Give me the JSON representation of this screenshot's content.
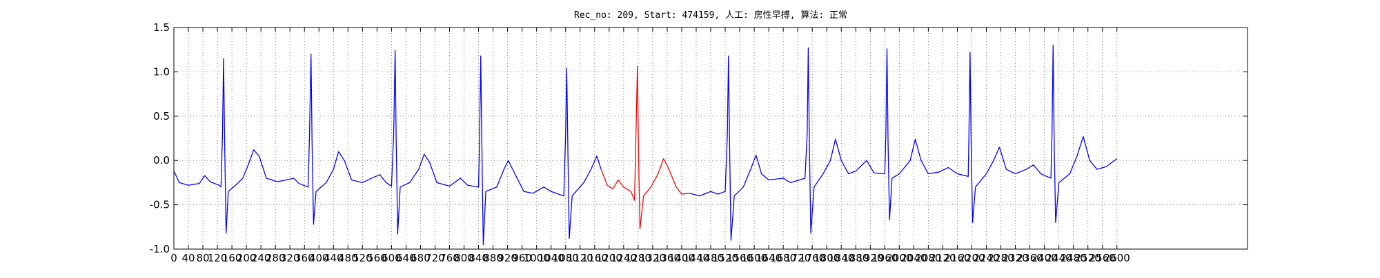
{
  "chart_data": {
    "type": "line",
    "title": "Rec_no: 209, Start: 474159, 人工: 房性早搏, 算法: 正常",
    "xlim": [
      0,
      2960
    ],
    "xticks": [
      0,
      40,
      80,
      120,
      160,
      200,
      240,
      280,
      320,
      360,
      400,
      440,
      480,
      520,
      560,
      600,
      640,
      680,
      720,
      760,
      800,
      840,
      880,
      920,
      960,
      1000,
      1040,
      1080,
      1120,
      1160,
      1200,
      1240,
      1280,
      1320,
      1360,
      1400,
      1440,
      1480,
      1520,
      1560,
      1600,
      1640,
      1680,
      1720,
      1760,
      1800,
      1840,
      1880,
      1920,
      1960,
      2000,
      2040,
      2080,
      2120,
      2160,
      2200,
      2240,
      2280,
      2320,
      2360,
      2400,
      2440,
      2480,
      2520,
      2560,
      2600
    ],
    "ylim": [
      -1.0,
      1.5
    ],
    "yticks": [
      {
        "value": -1.0,
        "label": "-1.0"
      },
      -0.5,
      {
        "value": 0.0,
        "label": "0.0"
      },
      0.5,
      {
        "value": 1.0,
        "label": "1.0"
      },
      1.5
    ],
    "grid": true,
    "series": [
      {
        "name": "正常",
        "color": "#0000ff",
        "x": [
          0,
          15,
          40,
          70,
          85,
          100,
          125,
          130,
          134,
          137,
          140,
          144,
          150,
          170,
          190,
          205,
          220,
          235,
          255,
          285,
          310,
          330,
          345,
          370,
          374,
          378,
          381,
          385,
          392,
          420,
          440,
          454,
          470,
          490,
          520,
          545,
          568,
          585,
          600,
          606,
          610,
          613,
          617,
          624,
          650,
          675,
          690,
          705,
          725,
          760,
          790,
          810,
          840,
          843,
          846,
          849,
          853,
          860,
          890,
          910,
          922,
          940,
          965,
          990,
          1020,
          1040,
          1075,
          1080,
          1083,
          1086,
          1090,
          1098,
          1130,
          1150,
          1166,
          1178,
          1300,
          1422,
          1450,
          1480,
          1500,
          1520,
          1526,
          1529,
          1532,
          1536,
          1545,
          1570,
          1590,
          1605,
          1620,
          1640,
          1680,
          1700,
          1740,
          1746,
          1749,
          1752,
          1756,
          1765,
          1790,
          1810,
          1824,
          1840,
          1860,
          1880,
          1910,
          1930,
          1960,
          1963,
          1966,
          1969,
          1973,
          1980,
          2000,
          2030,
          2044,
          2060,
          2080,
          2110,
          2135,
          2160,
          2190,
          2192,
          2195,
          2198,
          2202,
          2210,
          2240,
          2260,
          2276,
          2295,
          2320,
          2350,
          2370,
          2390,
          2418,
          2421,
          2424,
          2427,
          2431,
          2440,
          2470,
          2490,
          2507,
          2525,
          2545,
          2570,
          2600
        ],
        "values": [
          -0.12,
          -0.25,
          -0.28,
          -0.26,
          -0.17,
          -0.24,
          -0.28,
          -0.3,
          0.3,
          1.15,
          0.2,
          -0.82,
          -0.35,
          -0.28,
          -0.2,
          -0.05,
          0.12,
          0.05,
          -0.2,
          -0.24,
          -0.22,
          -0.2,
          -0.26,
          -0.3,
          0.3,
          1.2,
          0.2,
          -0.72,
          -0.35,
          -0.25,
          -0.1,
          0.1,
          0.0,
          -0.22,
          -0.25,
          -0.2,
          -0.16,
          -0.25,
          -0.29,
          0.3,
          1.24,
          0.2,
          -0.83,
          -0.3,
          -0.25,
          -0.1,
          0.07,
          -0.02,
          -0.25,
          -0.29,
          -0.2,
          -0.28,
          -0.3,
          0.3,
          1.18,
          0.2,
          -0.95,
          -0.35,
          -0.3,
          -0.1,
          0.0,
          -0.15,
          -0.35,
          -0.37,
          -0.3,
          -0.35,
          -0.4,
          0.3,
          1.04,
          0.2,
          -0.88,
          -0.4,
          -0.25,
          -0.1,
          0.05,
          -0.1,
          null,
          -0.37,
          -0.4,
          -0.35,
          -0.38,
          -0.35,
          0.3,
          1.18,
          0.2,
          -0.9,
          -0.4,
          -0.3,
          -0.1,
          0.06,
          -0.15,
          -0.22,
          -0.2,
          -0.25,
          -0.2,
          0.3,
          1.27,
          0.2,
          -0.82,
          -0.3,
          -0.15,
          0.0,
          0.24,
          0.0,
          -0.15,
          -0.12,
          0.0,
          -0.14,
          -0.15,
          0.3,
          1.26,
          0.2,
          -0.67,
          -0.2,
          -0.15,
          0.0,
          0.24,
          0.0,
          -0.15,
          -0.13,
          -0.08,
          -0.15,
          -0.18,
          0.3,
          1.22,
          0.2,
          -0.7,
          -0.3,
          -0.15,
          0.0,
          0.15,
          -0.1,
          -0.15,
          -0.1,
          -0.05,
          -0.15,
          -0.2,
          0.3,
          1.3,
          0.2,
          -0.7,
          -0.25,
          -0.15,
          0.05,
          0.27,
          0.0,
          -0.1,
          -0.07,
          0.02
        ]
      },
      {
        "name": "房性早搏",
        "color": "#ff0000",
        "x": [
          1178,
          1195,
          1210,
          1225,
          1240,
          1260,
          1270,
          1274,
          1278,
          1281,
          1285,
          1295,
          1315,
          1335,
          1350,
          1365,
          1385,
          1400,
          1422
        ],
        "values": [
          -0.1,
          -0.28,
          -0.32,
          -0.22,
          -0.3,
          -0.35,
          -0.45,
          0.3,
          1.06,
          0.1,
          -0.77,
          -0.4,
          -0.3,
          -0.15,
          0.02,
          -0.1,
          -0.3,
          -0.38,
          -0.37
        ]
      }
    ]
  }
}
